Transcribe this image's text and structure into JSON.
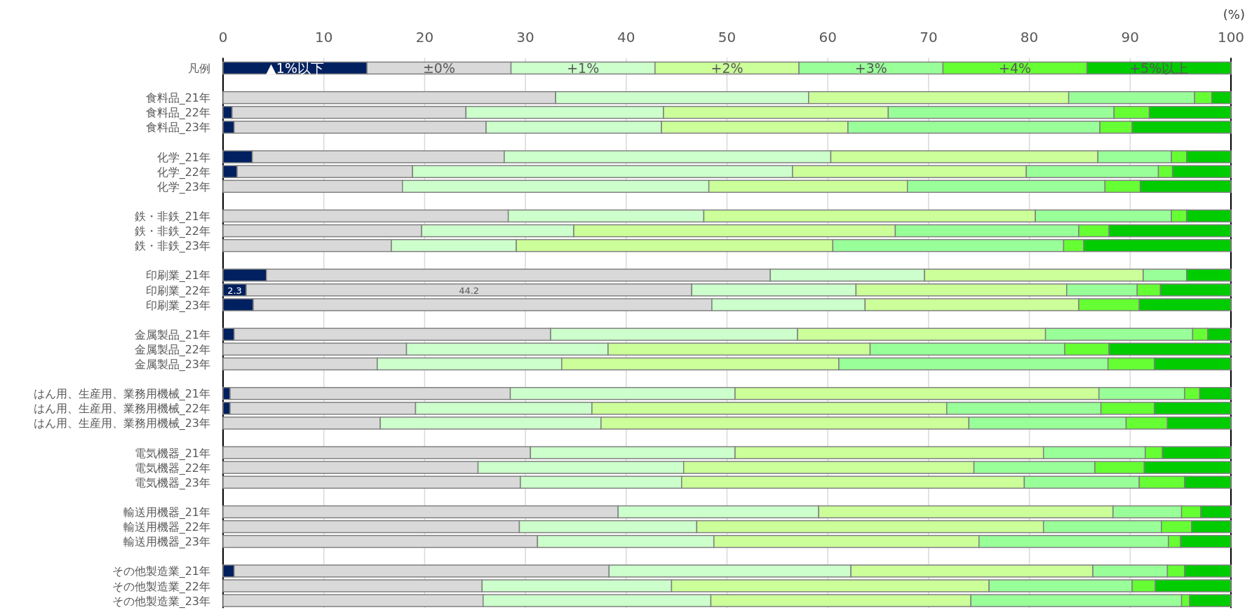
{
  "chart_data": {
    "type": "bar",
    "orientation": "horizontal",
    "stacked": true,
    "xlabel": "(%)",
    "legend_title": "凡例",
    "legend": "top",
    "grid": "x",
    "xlim": [
      0,
      100
    ],
    "xticks": [
      0,
      10,
      20,
      30,
      40,
      50,
      60,
      70,
      80,
      90,
      100
    ],
    "categories": [
      "食料品_21年",
      "食料品_22年",
      "食料品_23年",
      null,
      "化学_21年",
      "化学_22年",
      "化学_23年",
      null,
      "鉄・非鉄_21年",
      "鉄・非鉄_22年",
      "鉄・非鉄_23年",
      null,
      "印刷業_21年",
      "印刷業_22年",
      "印刷業_23年",
      null,
      "金属製品_21年",
      "金属製品_22年",
      "金属製品_23年",
      null,
      "はん用、生産用、業務用機械_21年",
      "はん用、生産用、業務用機械_22年",
      "はん用、生産用、業務用機械_23年",
      null,
      "電気機器_21年",
      "電気機器_22年",
      "電気機器_23年",
      null,
      "輸送用機器_21年",
      "輸送用機器_22年",
      "輸送用機器_23年",
      null,
      "その他製造業_21年",
      "その他製造業_22年",
      "その他製造業_23年"
    ],
    "series": [
      {
        "name": "▲1%以下",
        "color": "#002060",
        "values": [
          0,
          0.9,
          1.1,
          null,
          2.9,
          1.4,
          0,
          null,
          0,
          0,
          0,
          null,
          4.3,
          2.3,
          3.0,
          null,
          1.1,
          0,
          0,
          null,
          0.7,
          0.7,
          0,
          null,
          0,
          0,
          0,
          null,
          0,
          0,
          0,
          null,
          1.1,
          0,
          0
        ],
        "value_labels": [
          null,
          null,
          null,
          null,
          null,
          null,
          null,
          null,
          null,
          null,
          null,
          null,
          null,
          "2.3",
          null,
          null,
          null,
          null,
          null,
          null,
          null,
          null,
          null,
          null,
          null,
          null,
          null,
          null,
          null,
          null,
          null,
          null,
          null,
          null,
          null
        ]
      },
      {
        "name": "±0%",
        "color": "#d9d9d9",
        "values": [
          33.0,
          23.2,
          25.0,
          null,
          25.0,
          17.4,
          17.8,
          null,
          28.3,
          19.7,
          16.7,
          null,
          50.0,
          44.2,
          45.5,
          null,
          31.4,
          18.2,
          15.3,
          null,
          27.8,
          18.4,
          15.6,
          null,
          30.5,
          25.3,
          29.5,
          null,
          39.2,
          29.4,
          31.2,
          null,
          37.2,
          25.7,
          25.8
        ],
        "value_labels": [
          null,
          null,
          null,
          null,
          null,
          null,
          null,
          null,
          null,
          null,
          null,
          null,
          null,
          "44.2",
          null,
          null,
          null,
          null,
          null,
          null,
          null,
          null,
          null,
          null,
          null,
          null,
          null,
          null,
          null,
          null,
          null,
          null,
          null,
          null,
          null
        ]
      },
      {
        "name": "+1%",
        "color": "#ccffcc",
        "values": [
          25.1,
          19.6,
          17.4,
          null,
          32.4,
          37.7,
          30.4,
          null,
          19.4,
          15.1,
          12.4,
          null,
          15.3,
          16.3,
          15.2,
          null,
          24.5,
          20.0,
          18.3,
          null,
          22.3,
          17.5,
          21.9,
          null,
          20.3,
          20.4,
          16.0,
          null,
          19.9,
          17.6,
          17.5,
          null,
          24.0,
          18.8,
          22.6
        ]
      },
      {
        "name": "+2%",
        "color": "#ccff99",
        "values": [
          25.8,
          22.3,
          18.5,
          null,
          26.5,
          23.2,
          19.7,
          null,
          32.9,
          31.9,
          31.4,
          null,
          21.7,
          20.9,
          21.2,
          null,
          24.6,
          26.0,
          27.5,
          null,
          36.1,
          35.2,
          36.5,
          null,
          30.6,
          28.8,
          34.0,
          null,
          29.2,
          34.4,
          26.3,
          null,
          24.0,
          31.5,
          25.8
        ]
      },
      {
        "name": "+3%",
        "color": "#99ff99",
        "values": [
          12.5,
          22.4,
          25.0,
          null,
          7.3,
          13.1,
          19.6,
          null,
          13.5,
          18.2,
          22.9,
          null,
          4.3,
          7.0,
          0,
          null,
          14.6,
          19.3,
          26.7,
          null,
          8.5,
          15.3,
          15.6,
          null,
          10.1,
          12.0,
          11.4,
          null,
          6.8,
          11.7,
          18.8,
          null,
          7.4,
          14.2,
          20.9
        ]
      },
      {
        "name": "+4%",
        "color": "#66ff33",
        "values": [
          1.7,
          3.5,
          3.2,
          null,
          1.5,
          1.4,
          3.5,
          null,
          1.5,
          3.0,
          2.0,
          null,
          0,
          2.3,
          6.0,
          null,
          1.5,
          4.4,
          4.6,
          null,
          1.5,
          5.3,
          4.1,
          null,
          1.7,
          4.9,
          4.5,
          null,
          1.9,
          3.0,
          1.2,
          null,
          1.7,
          2.3,
          0.8
        ]
      },
      {
        "name": "+5%以上",
        "color": "#00cc00",
        "values": [
          1.9,
          8.1,
          9.8,
          null,
          4.4,
          5.8,
          9.0,
          null,
          4.4,
          12.1,
          14.6,
          null,
          4.4,
          7.0,
          9.1,
          null,
          2.3,
          12.1,
          7.6,
          null,
          3.1,
          7.6,
          6.3,
          null,
          6.8,
          8.6,
          4.6,
          null,
          3.0,
          3.9,
          5.0,
          null,
          4.6,
          7.5,
          4.1
        ]
      }
    ]
  }
}
